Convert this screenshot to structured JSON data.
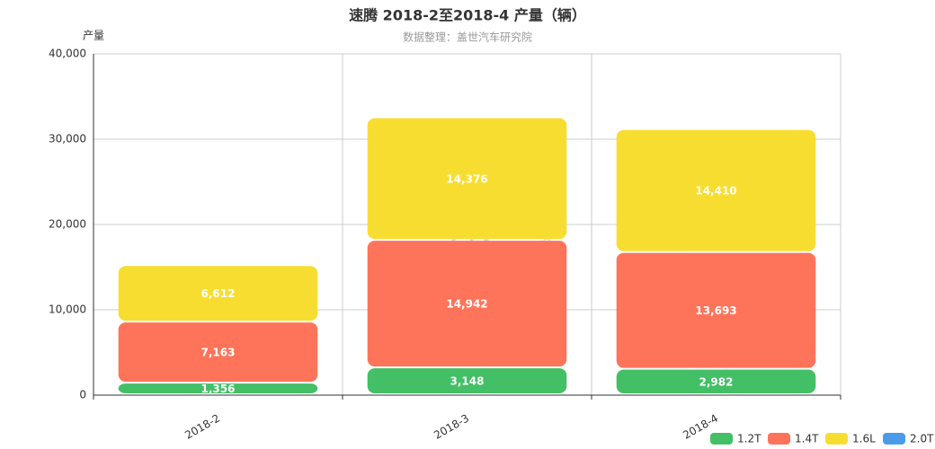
{
  "chart_data": {
    "type": "stacked-bar",
    "title": "速腾 2018-2至2018-4 产量（辆）",
    "subtitle": "数据整理：盖世汽车研究院",
    "y_label": "产量",
    "watermark": [
      "盖世汽车",
      "Gasgoo",
      "auto.gasgoo.com"
    ],
    "categories": [
      "2018-2",
      "2018-3",
      "2018-4"
    ],
    "series": [
      {
        "name": "1.2T",
        "color": "#43bf66",
        "values": [
          1356,
          3148,
          2982
        ],
        "value_labels": [
          "1,356",
          "3,148",
          "2,982"
        ]
      },
      {
        "name": "1.4T",
        "color": "#fe745a",
        "values": [
          7163,
          14942,
          13693
        ],
        "value_labels": [
          "7,163",
          "14,942",
          "13,693"
        ]
      },
      {
        "name": "1.6L",
        "color": "#f8dd31",
        "values": [
          6612,
          14376,
          14410
        ],
        "value_labels": [
          "6,612",
          "14,376",
          "14,410"
        ]
      },
      {
        "name": "2.0T",
        "color": "#4c9beb",
        "values": [
          0,
          0,
          0
        ]
      }
    ],
    "ylim": [
      0,
      40000
    ],
    "yticks": [
      0,
      {
        "value": 10000,
        "label": "10,000"
      },
      {
        "value": 20000,
        "label": "20,000"
      },
      {
        "value": 30000,
        "label": "30,000"
      },
      {
        "value": 40000,
        "label": "40,000"
      }
    ],
    "grid": true,
    "legend": "bottom-right"
  }
}
